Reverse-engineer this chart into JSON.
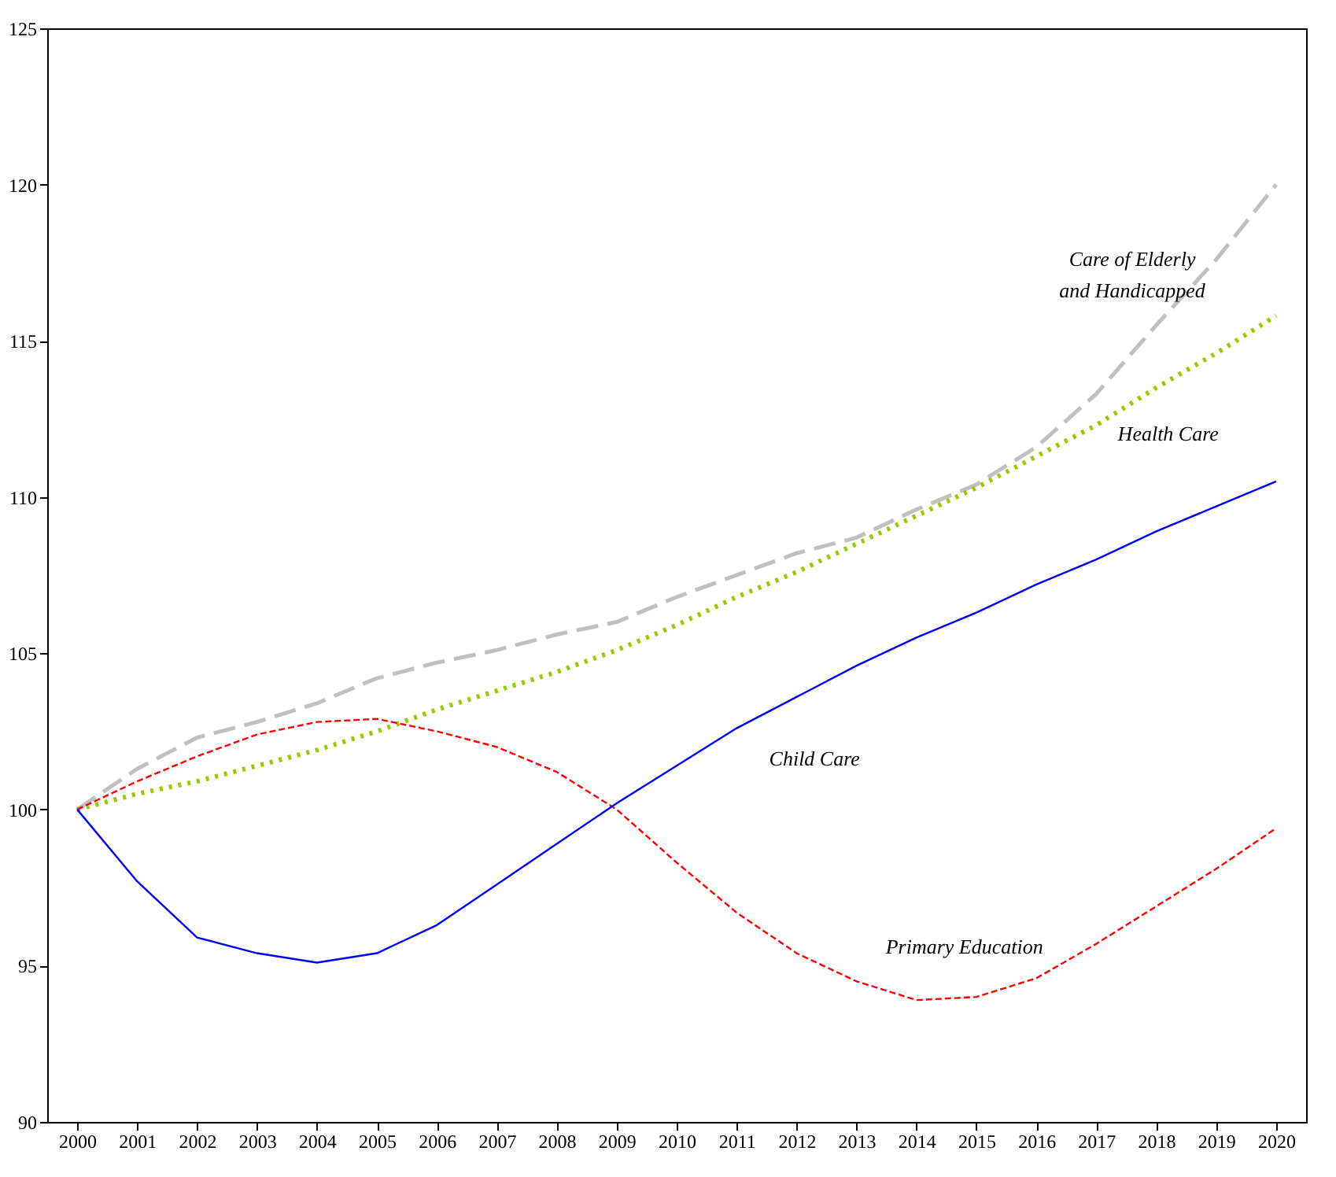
{
  "chart_data": {
    "type": "line",
    "x": [
      2000,
      2001,
      2002,
      2003,
      2004,
      2005,
      2006,
      2007,
      2008,
      2009,
      2010,
      2011,
      2012,
      2013,
      2014,
      2015,
      2016,
      2017,
      2018,
      2019,
      2020
    ],
    "xlim": [
      1999.5,
      2020.5
    ],
    "xticks": [
      2000,
      2001,
      2002,
      2003,
      2004,
      2005,
      2006,
      2007,
      2008,
      2009,
      2010,
      2011,
      2012,
      2013,
      2014,
      2015,
      2016,
      2017,
      2018,
      2019,
      2020
    ],
    "ylim": [
      90,
      125
    ],
    "yticks": [
      90,
      95,
      100,
      105,
      110,
      115,
      120,
      125
    ],
    "grid": false,
    "series": [
      {
        "name": "Child Care",
        "color": "#0000ff",
        "line_style": "solid",
        "values": [
          100,
          97.7,
          95.9,
          95.4,
          95.1,
          95.4,
          96.3,
          97.6,
          98.9,
          100.2,
          101.4,
          102.6,
          103.6,
          104.6,
          105.5,
          106.3,
          107.2,
          108.0,
          108.9,
          109.7,
          110.5
        ]
      },
      {
        "name": "Primary Education",
        "color": "#ff0000",
        "line_style": "dashed",
        "values": [
          100,
          100.9,
          101.7,
          102.4,
          102.8,
          102.9,
          102.5,
          102.0,
          101.2,
          100.0,
          98.3,
          96.7,
          95.4,
          94.5,
          93.9,
          94.0,
          94.6,
          95.7,
          96.9,
          98.1,
          99.4
        ]
      },
      {
        "name": "Health Care",
        "color": "#99cc00",
        "line_style": "dotted",
        "values": [
          100,
          100.5,
          100.9,
          101.4,
          101.9,
          102.5,
          103.2,
          103.8,
          104.4,
          105.1,
          105.9,
          106.8,
          107.6,
          108.5,
          109.4,
          110.3,
          111.3,
          112.3,
          113.5,
          114.6,
          115.8
        ]
      },
      {
        "name": "Care of Elderly and Handicapped",
        "color": "#c0c0c0",
        "line_style": "longdash",
        "values": [
          100,
          101.3,
          102.3,
          102.8,
          103.4,
          104.2,
          104.7,
          105.1,
          105.6,
          106.0,
          106.8,
          107.5,
          108.2,
          108.7,
          109.6,
          110.4,
          111.6,
          113.3,
          115.5,
          117.6,
          120.0
        ]
      }
    ]
  }
}
